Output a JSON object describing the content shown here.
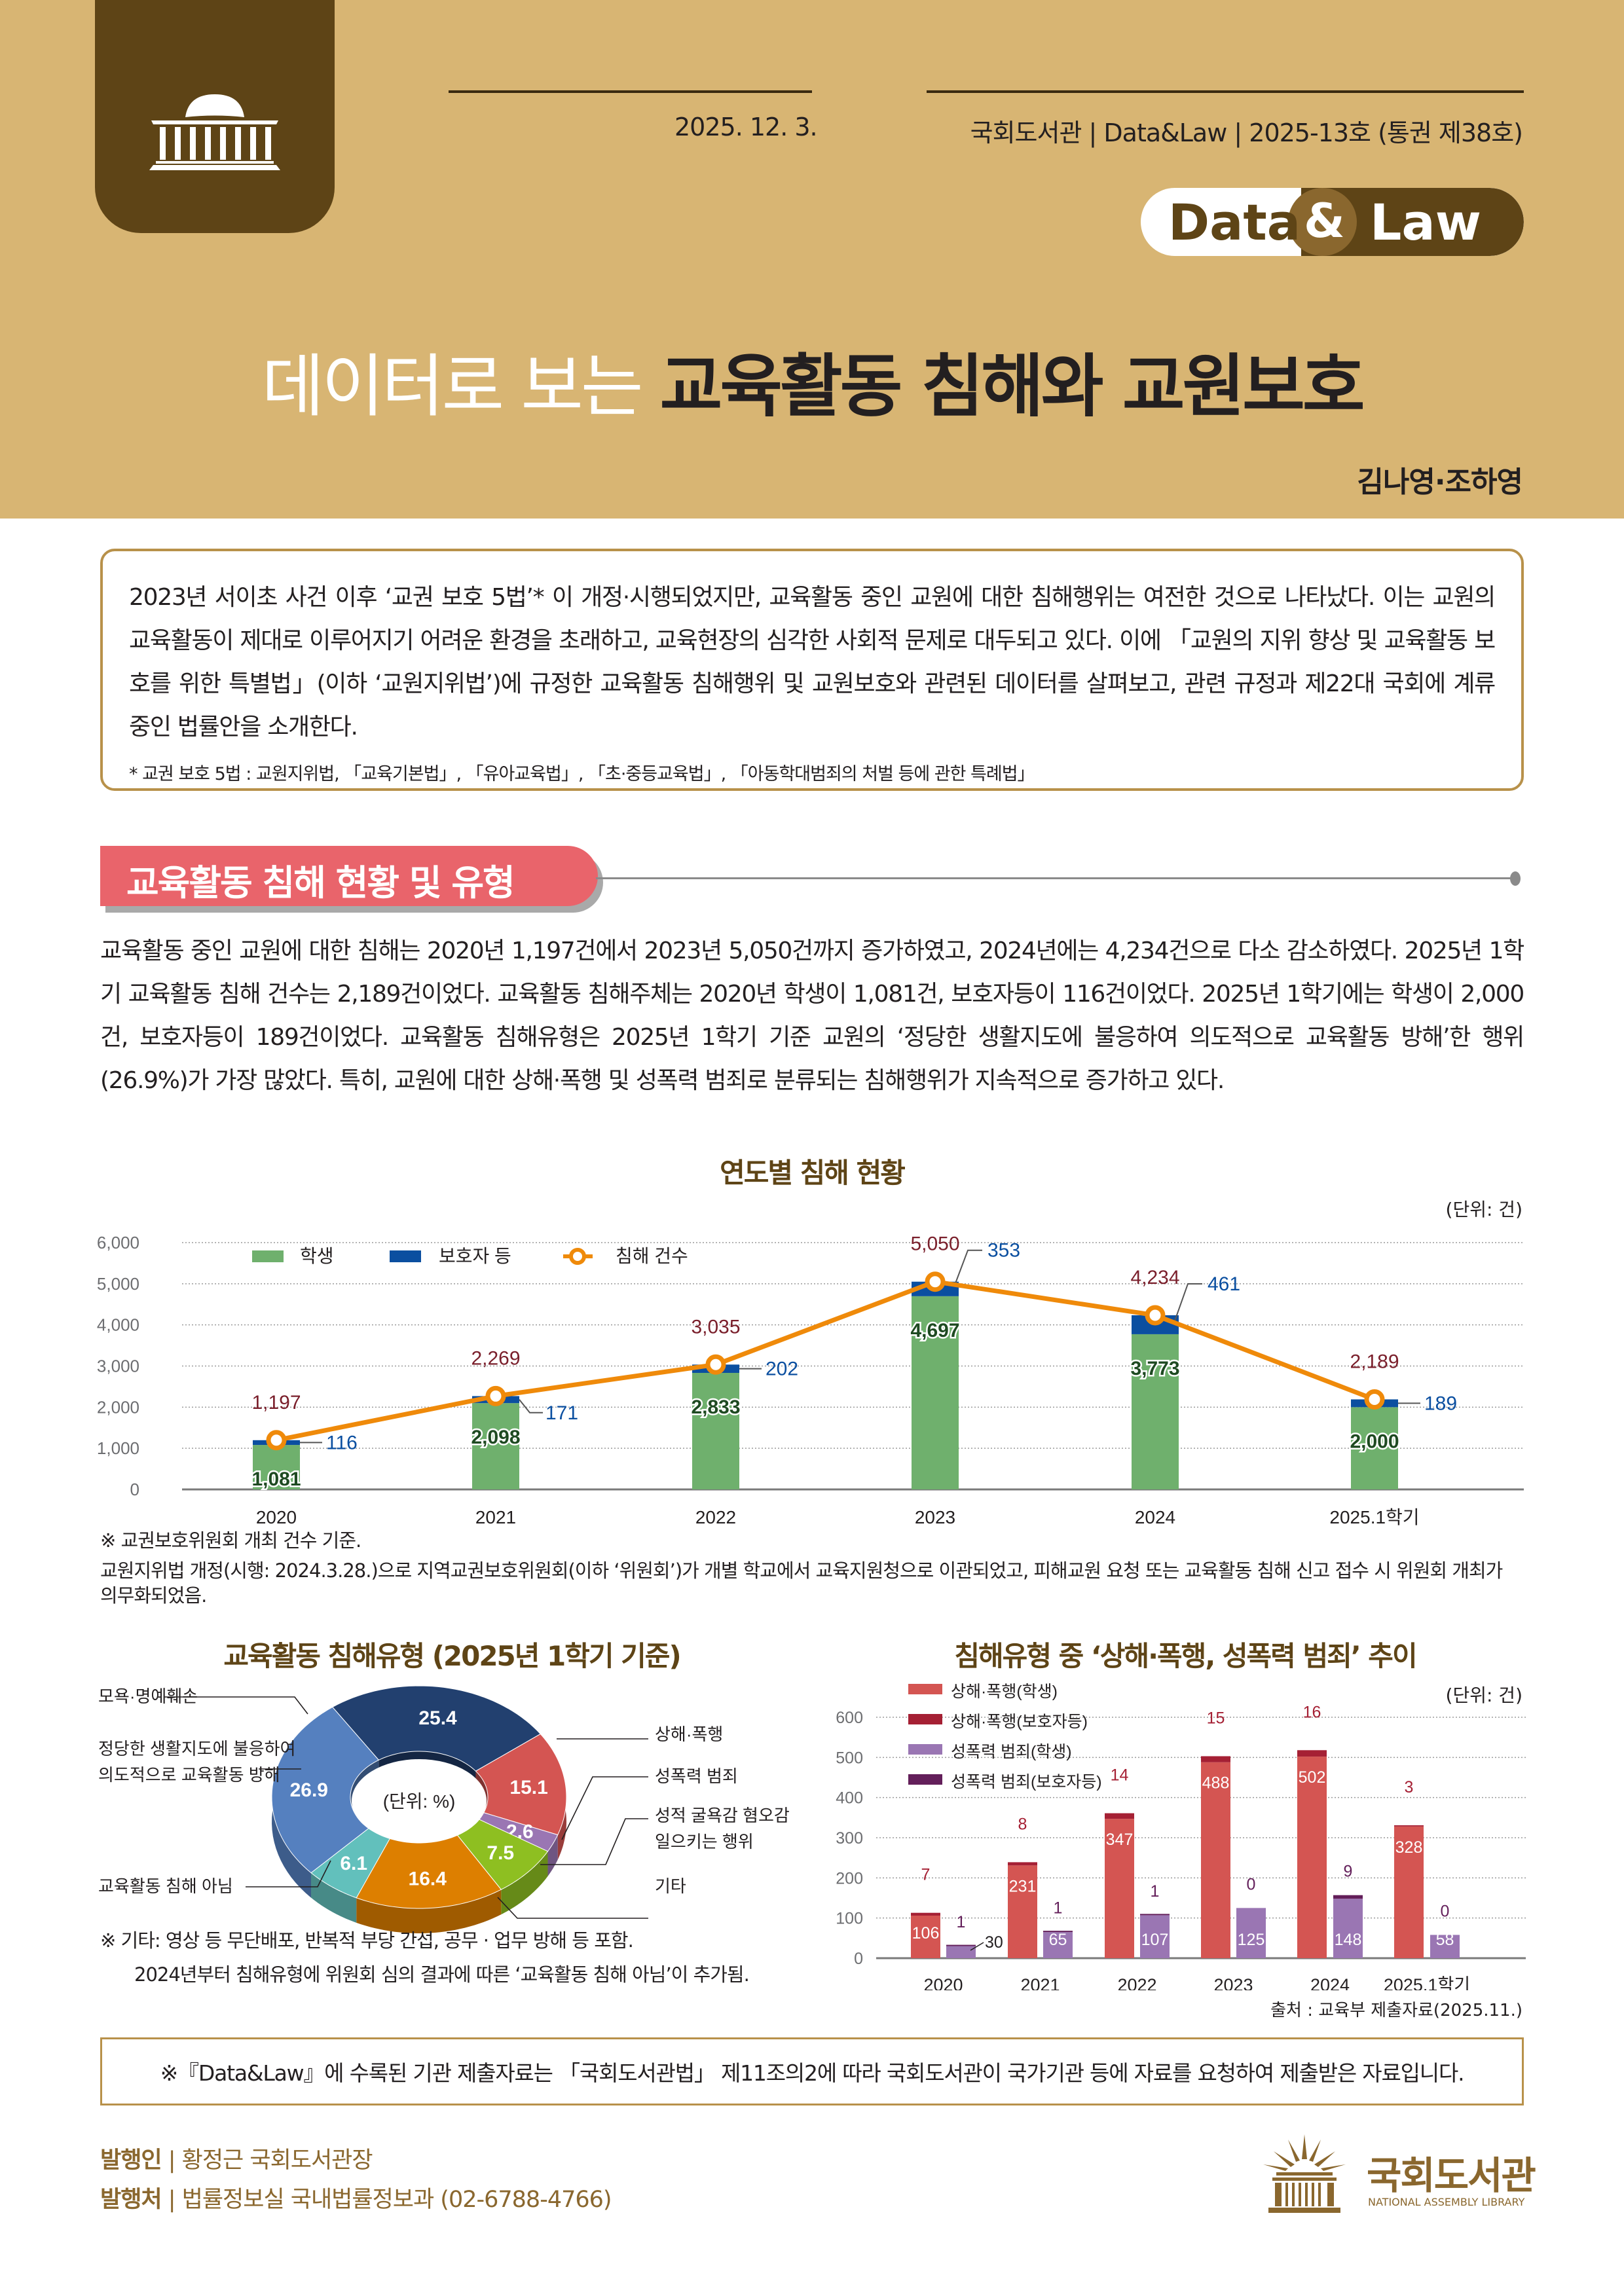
{
  "header": {
    "date": "2025. 12. 3.",
    "publication": "국회도서관 | Data&Law | 2025-13호 (통권 제38호)",
    "badge": {
      "left": "Data",
      "amp": "&",
      "right": "Law"
    },
    "title_light": "데이터로 보는",
    "title_bold": "교육활동 침해와 교원보호",
    "authors": "김나영·조하영",
    "colors": {
      "background": "#d8b573",
      "dark": "#5e4416"
    }
  },
  "summary": {
    "text": "2023년 서이초 사건 이후 ‘교권 보호 5법’* 이 개정·시행되었지만, 교육활동 중인 교원에 대한 침해행위는 여전한 것으로 나타났다. 이는 교원의 교육활동이 제대로 이루어지기 어려운 환경을 초래하고, 교육현장의 심각한 사회적 문제로 대두되고 있다. 이에 「교원의 지위 향상 및 교육활동 보호를 위한 특별법」(이하 ‘교원지위법’)에 규정한 교육활동 침해행위 및 교원보호와 관련된 데이터를 살펴보고, 관련 규정과 제22대 국회에 계류 중인 법률안을 소개한다.",
    "footnote": "* 교권 보호 5법 : 교원지위법, 「교육기본법」, 「유아교육법」, 「초·중등교육법」, 「아동학대범죄의 처벌 등에 관한 특례법」"
  },
  "section": {
    "heading": "교육활동 침해 현황 및 유형",
    "body": "교육활동 중인 교원에 대한 침해는 2020년 1,197건에서 2023년 5,050건까지 증가하였고, 2024년에는 4,234건으로 다소 감소하였다. 2025년 1학기 교육활동 침해 건수는 2,189건이었다. 교육활동 침해주체는 2020년 학생이 1,081건, 보호자등이 116건이었다. 2025년 1학기에는 학생이 2,000건, 보호자등이 189건이었다. 교육활동 침해유형은 2025년 1학기 기준 교원의 ‘정당한 생활지도에 불응하여 의도적으로 교육활동 방해’한 행위(26.9%)가 가장 많았다. 특히, 교원에 대한 상해·폭행 및 성폭력 범죄로 분류되는 침해행위가 지속적으로 증가하고 있다."
  },
  "chart1_notes": {
    "note1": "※ 교권보호위원회 개최 건수 기준.",
    "note2": "교원지위법 개정(시행: 2024.3.28.)으로 지역교권보호위원회(이하 ‘위원회’)가 개별 학교에서 교육지원청으로 이관되었고, 피해교원 요청 또는 교육활동 침해 신고 접수 시 위원회 개최가 의무화되었음."
  },
  "chart2_notes": {
    "note1": "※ 기타: 영상 등 무단배포, 반복적 부당 간섭, 공무 · 업무 방해 등 포함.",
    "note2": "2024년부터 침해유형에 위원회 심의 결과에 따른 ‘교육활동 침해 아님’이 추가됨."
  },
  "chart3_source": "출처 : 교육부 제출자료(2025.11.)",
  "disclaimer": "※『Data&Law』에 수록된 기관 제출자료는 「국회도서관법」 제11조의2에 따라 국회도서관이 국가기관 등에 자료를 요청하여 제출받은 자료입니다.",
  "footer": {
    "publisher_label": "발행인",
    "publisher": "황정근 국회도서관장",
    "issuer_label": "발행처",
    "issuer": "법률정보실 국내법률정보과 (02-6788-4766)",
    "logo_kr": "국회도서관",
    "logo_en": "NATIONAL ASSEMBLY LIBRARY"
  },
  "chart_data": [
    {
      "type": "bar",
      "subtype": "stacked_bar_with_line",
      "title": "연도별 침해 현황",
      "unit": "(단위: 건)",
      "categories": [
        "2020",
        "2021",
        "2022",
        "2023",
        "2024",
        "2025.1학기"
      ],
      "series": [
        {
          "name": "학생",
          "type": "bar",
          "color": "#6fb06d",
          "values": [
            1081,
            2098,
            2833,
            4697,
            3773,
            2000
          ]
        },
        {
          "name": "보호자 등",
          "type": "bar",
          "color": "#0b4fa0",
          "values": [
            116,
            171,
            202,
            353,
            461,
            189
          ]
        },
        {
          "name": "침해 건수",
          "type": "line",
          "color": "#ef8a0a",
          "values": [
            1197,
            2269,
            3035,
            5050,
            4234,
            2189
          ]
        }
      ],
      "yticks": [
        "0",
        "1,000",
        "2,000",
        "3,000",
        "4,000",
        "5,000",
        "6,000"
      ],
      "ylim": [
        0,
        6000
      ],
      "grid": true,
      "legend_position": "top-left",
      "labels": {
        "student": [
          "1,081",
          "2,098",
          "2,833",
          "4,697",
          "3,773",
          "2,000"
        ],
        "parent": [
          "116",
          "171",
          "202",
          "353",
          "461",
          "189"
        ],
        "total": [
          "1,197",
          "2,269",
          "3,035",
          "5,050",
          "4,234",
          "2,189"
        ]
      }
    },
    {
      "type": "pie",
      "subtype": "donut_3d",
      "title": "교육활동 침해유형 (2025년 1학기 기준)",
      "unit": "(단위: %)",
      "slices": [
        {
          "name": "모욕·명예훼손",
          "value": 25.4,
          "color": "#22406f"
        },
        {
          "name": "상해·폭행",
          "value": 15.1,
          "color": "#d45552"
        },
        {
          "name": "성폭력 범죄",
          "value": 2.6,
          "color": "#9a76b3"
        },
        {
          "name": "성적 굴욕감 혐오감 일으키는 행위",
          "value": 7.5,
          "color": "#8ebf21"
        },
        {
          "name": "기타",
          "value": 16.4,
          "color": "#dd7f00"
        },
        {
          "name": "교육활동 침해 아님",
          "value": 6.1,
          "color": "#62c0bc"
        },
        {
          "name": "정당한 생활지도에 불응하여 의도적으로 교육활동 방해",
          "value": 26.9,
          "color": "#5580bf"
        }
      ]
    },
    {
      "type": "bar",
      "subtype": "grouped_stacked_bar",
      "title": "침해유형 중 ‘상해·폭행, 성폭력 범죄’ 추이",
      "unit": "(단위: 건)",
      "categories": [
        "2020",
        "2021",
        "2022",
        "2023",
        "2024",
        "2025.1학기"
      ],
      "series": [
        {
          "name": "상해·폭행(학생)",
          "stack": "assault",
          "color": "#d45552",
          "values": [
            106,
            231,
            347,
            488,
            502,
            328
          ]
        },
        {
          "name": "상해·폭행(보호자등)",
          "stack": "assault",
          "color": "#a52034",
          "values": [
            7,
            8,
            14,
            15,
            16,
            3
          ]
        },
        {
          "name": "성폭력 범죄(학생)",
          "stack": "sexual",
          "color": "#9a76b3",
          "values": [
            30,
            65,
            107,
            125,
            148,
            58
          ]
        },
        {
          "name": "성폭력 범죄(보호자등)",
          "stack": "sexual",
          "color": "#631f5a",
          "values": [
            1,
            1,
            1,
            0,
            9,
            0
          ]
        }
      ],
      "yticks": [
        "0",
        "100",
        "200",
        "300",
        "400",
        "500",
        "600"
      ],
      "ylim": [
        0,
        600
      ],
      "grid": true,
      "legend_position": "top-left",
      "source": "출처 : 교육부 제출자료(2025.11.)"
    }
  ]
}
